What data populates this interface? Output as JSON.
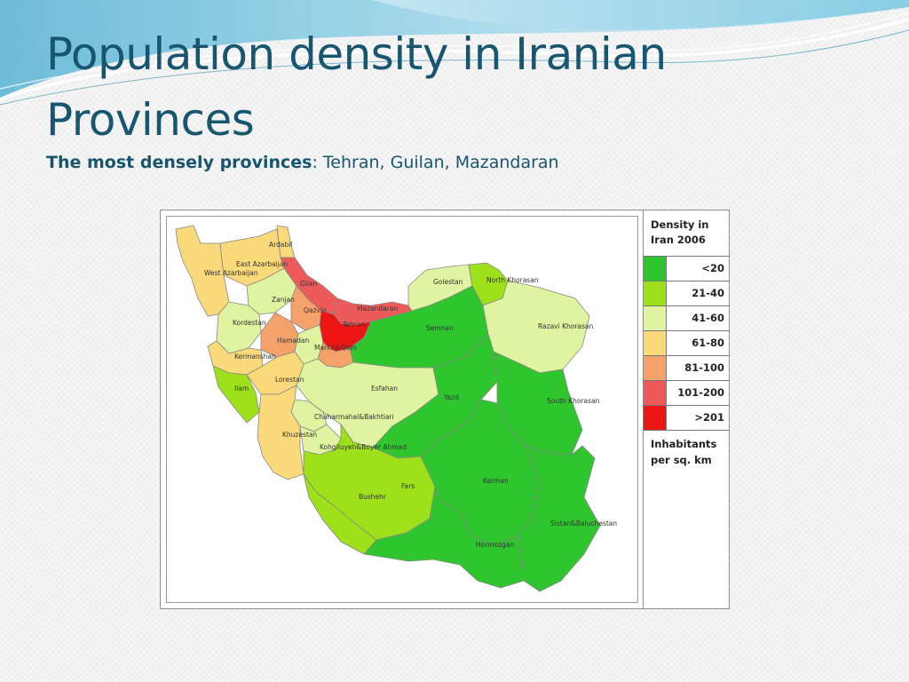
{
  "slide": {
    "title": "Population density in Iranian Provinces",
    "subtitle_bold": "The most densely provinces",
    "subtitle_rest": ": Tehran, Guilan, Mazandaran"
  },
  "legend": {
    "title_line1": "Density in",
    "title_line2": "Iran 2006",
    "classes": [
      {
        "label": "<20",
        "color": "#2ec52e"
      },
      {
        "label": "21-40",
        "color": "#9ee01a"
      },
      {
        "label": "41-60",
        "color": "#dff3a0"
      },
      {
        "label": "61-80",
        "color": "#f9d97a"
      },
      {
        "label": "81-100",
        "color": "#f5a26a"
      },
      {
        "label": "101-200",
        "color": "#ee5a5a"
      },
      {
        "label": ">201",
        "color": "#ee1515"
      }
    ],
    "footer_line1": "Inhabitants",
    "footer_line2": "per sq. km"
  },
  "provinces": [
    {
      "name": "Ardabil",
      "class": 3
    },
    {
      "name": "East Azarbaijan",
      "class": 3
    },
    {
      "name": "West Azarbaijan",
      "class": 3
    },
    {
      "name": "Gilan",
      "class": 5
    },
    {
      "name": "Zanjan",
      "class": 2
    },
    {
      "name": "Qazvin",
      "class": 4
    },
    {
      "name": "Mazandaran",
      "class": 5
    },
    {
      "name": "Golestan",
      "class": 2
    },
    {
      "name": "North Khorasan",
      "class": 1
    },
    {
      "name": "Kordestan",
      "class": 2
    },
    {
      "name": "Tehran",
      "class": 6
    },
    {
      "name": "Hamadan",
      "class": 4
    },
    {
      "name": "Kermanshah",
      "class": 3
    },
    {
      "name": "Markazi",
      "class": 2
    },
    {
      "name": "Qom",
      "class": 4
    },
    {
      "name": "Semnan",
      "class": 0
    },
    {
      "name": "Razavi Khorasan",
      "class": 2
    },
    {
      "name": "Ilam",
      "class": 1
    },
    {
      "name": "Lorestan",
      "class": 3
    },
    {
      "name": "Esfahan",
      "class": 2
    },
    {
      "name": "Chaharmahal&Bakhtiari",
      "class": 2
    },
    {
      "name": "Khuzestan",
      "class": 3
    },
    {
      "name": "Kohgiluyeh&Boyer Ahmad",
      "class": 2
    },
    {
      "name": "Yazd",
      "class": 0
    },
    {
      "name": "South Khorasan",
      "class": 0
    },
    {
      "name": "Fars",
      "class": 1
    },
    {
      "name": "Bushehr",
      "class": 1
    },
    {
      "name": "Kerman",
      "class": 0
    },
    {
      "name": "Sistan&Baluchestan",
      "class": 0
    },
    {
      "name": "Hormozgan",
      "class": 0
    }
  ]
}
